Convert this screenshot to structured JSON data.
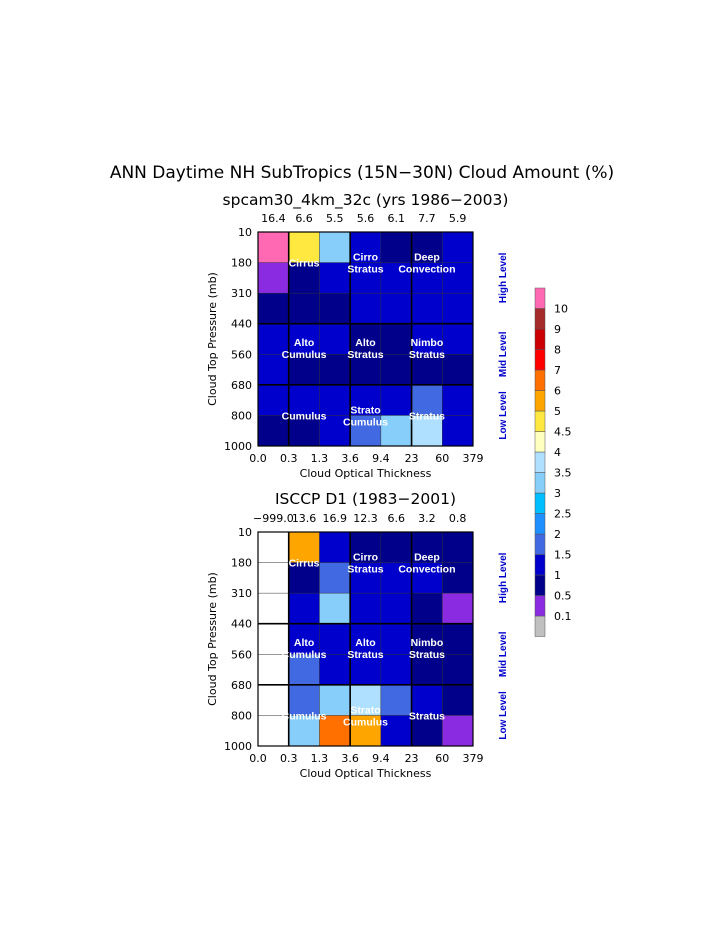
{
  "title": "ANN Daytime NH SubTropics (15N−30N) Cloud Amount (%)",
  "colorbar": {
    "labels": [
      "0.1",
      "0.5",
      "1",
      "1.5",
      "2",
      "2.5",
      "3",
      "3.5",
      "4",
      "4.5",
      "5",
      "6",
      "7",
      "8",
      "9",
      "10"
    ],
    "colors": [
      "#c0c0c0",
      "#8a2be2",
      "#00008b",
      "#0000cd",
      "#4169e1",
      "#1e90ff",
      "#00bfff",
      "#87cefa",
      "#b0e0ff",
      "#ffffc0",
      "#ffe840",
      "#ffa500",
      "#ff7000",
      "#ff0000",
      "#cc0000",
      "#a52a2a",
      "#ff69b4"
    ]
  },
  "level_labels": [
    "High Level",
    "Mid Level",
    "Low Level"
  ],
  "chart_data": [
    {
      "type": "heatmap",
      "title": "spcam30_4km_32c (yrs 1986−2003)",
      "xlabel": "Cloud Optical Thickness",
      "ylabel": "Cloud Top Pressure (mb)",
      "x_ticks": [
        "0.0",
        "0.3",
        "1.3",
        "3.6",
        "9.4",
        "23",
        "60",
        "379"
      ],
      "y_ticks": [
        "10",
        "180",
        "310",
        "440",
        "560",
        "680",
        "800",
        "1000"
      ],
      "column_totals": [
        "16.4",
        "6.6",
        "5.5",
        "5.6",
        "6.1",
        "7.7",
        "5.9"
      ],
      "grid": [
        [
          10.5,
          4.8,
          3.2,
          1.0,
          0.8,
          0.8,
          1.0
        ],
        [
          0.1,
          0.8,
          1.0,
          1.0,
          1.0,
          1.0,
          1.0
        ],
        [
          0.8,
          0.8,
          0.8,
          1.0,
          1.0,
          1.0,
          1.0
        ],
        [
          1.0,
          1.0,
          1.0,
          0.8,
          0.8,
          1.0,
          1.0
        ],
        [
          1.0,
          0.8,
          0.8,
          0.8,
          0.8,
          0.8,
          0.8
        ],
        [
          1.2,
          1.0,
          1.0,
          1.2,
          1.2,
          1.6,
          1.2
        ],
        [
          0.8,
          0.8,
          1.0,
          1.6,
          3.2,
          3.7,
          1.2
        ]
      ],
      "regions": [
        {
          "label": "Cirrus",
          "lines": [
            "Cirrus"
          ]
        },
        {
          "label": "Cirro Stratus",
          "lines": [
            "Cirro",
            "Stratus"
          ]
        },
        {
          "label": "Deep Convection",
          "lines": [
            "Deep",
            "Convection"
          ]
        },
        {
          "label": "Alto Cumulus",
          "lines": [
            "Alto",
            "Cumulus"
          ]
        },
        {
          "label": "Alto Stratus",
          "lines": [
            "Alto",
            "Stratus"
          ]
        },
        {
          "label": "Nimbo Stratus",
          "lines": [
            "Nimbo",
            "Stratus"
          ]
        },
        {
          "label": "Cumulus",
          "lines": [
            "Cumulus"
          ]
        },
        {
          "label": "Strato Cumulus",
          "lines": [
            "Strato",
            "Cumulus"
          ]
        },
        {
          "label": "Stratus",
          "lines": [
            "Stratus"
          ]
        }
      ]
    },
    {
      "type": "heatmap",
      "title": "ISCCP D1 (1983−2001)",
      "xlabel": "Cloud Optical Thickness",
      "ylabel": "Cloud Top Pressure (mb)",
      "x_ticks": [
        "0.0",
        "0.3",
        "1.3",
        "3.6",
        "9.4",
        "23",
        "60",
        "379"
      ],
      "y_ticks": [
        "10",
        "180",
        "310",
        "440",
        "560",
        "680",
        "800",
        "1000"
      ],
      "column_totals": [
        "−999.0",
        "13.6",
        "16.9",
        "12.3",
        "6.6",
        "3.2",
        "0.8"
      ],
      "grid": [
        [
          null,
          5.5,
          1.0,
          0.8,
          0.8,
          0.8,
          0.8
        ],
        [
          null,
          0.8,
          1.6,
          1.0,
          1.0,
          1.0,
          0.8
        ],
        [
          null,
          1.0,
          3.2,
          1.0,
          1.0,
          0.8,
          0.1
        ],
        [
          null,
          1.2,
          1.2,
          1.0,
          1.0,
          0.8,
          0.8
        ],
        [
          null,
          1.6,
          1.2,
          1.0,
          1.0,
          0.8,
          0.8
        ],
        [
          null,
          1.6,
          3.2,
          3.7,
          1.6,
          1.0,
          0.8
        ],
        [
          null,
          3.2,
          6.5,
          5.5,
          1.0,
          0.8,
          0.1
        ]
      ],
      "regions": [
        {
          "label": "Cirrus",
          "lines": [
            "Cirrus"
          ]
        },
        {
          "label": "Cirro Stratus",
          "lines": [
            "Cirro",
            "Stratus"
          ]
        },
        {
          "label": "Deep Convection",
          "lines": [
            "Deep",
            "Convection"
          ]
        },
        {
          "label": "Alto Cumulus",
          "lines": [
            "Alto",
            "Cumulus"
          ]
        },
        {
          "label": "Alto Stratus",
          "lines": [
            "Alto",
            "Stratus"
          ]
        },
        {
          "label": "Nimbo Stratus",
          "lines": [
            "Nimbo",
            "Stratus"
          ]
        },
        {
          "label": "Cumulus",
          "lines": [
            "Cumulus"
          ]
        },
        {
          "label": "Strato Cumulus",
          "lines": [
            "Strato",
            "Cumulus"
          ]
        },
        {
          "label": "Stratus",
          "lines": [
            "Stratus"
          ]
        }
      ]
    }
  ]
}
